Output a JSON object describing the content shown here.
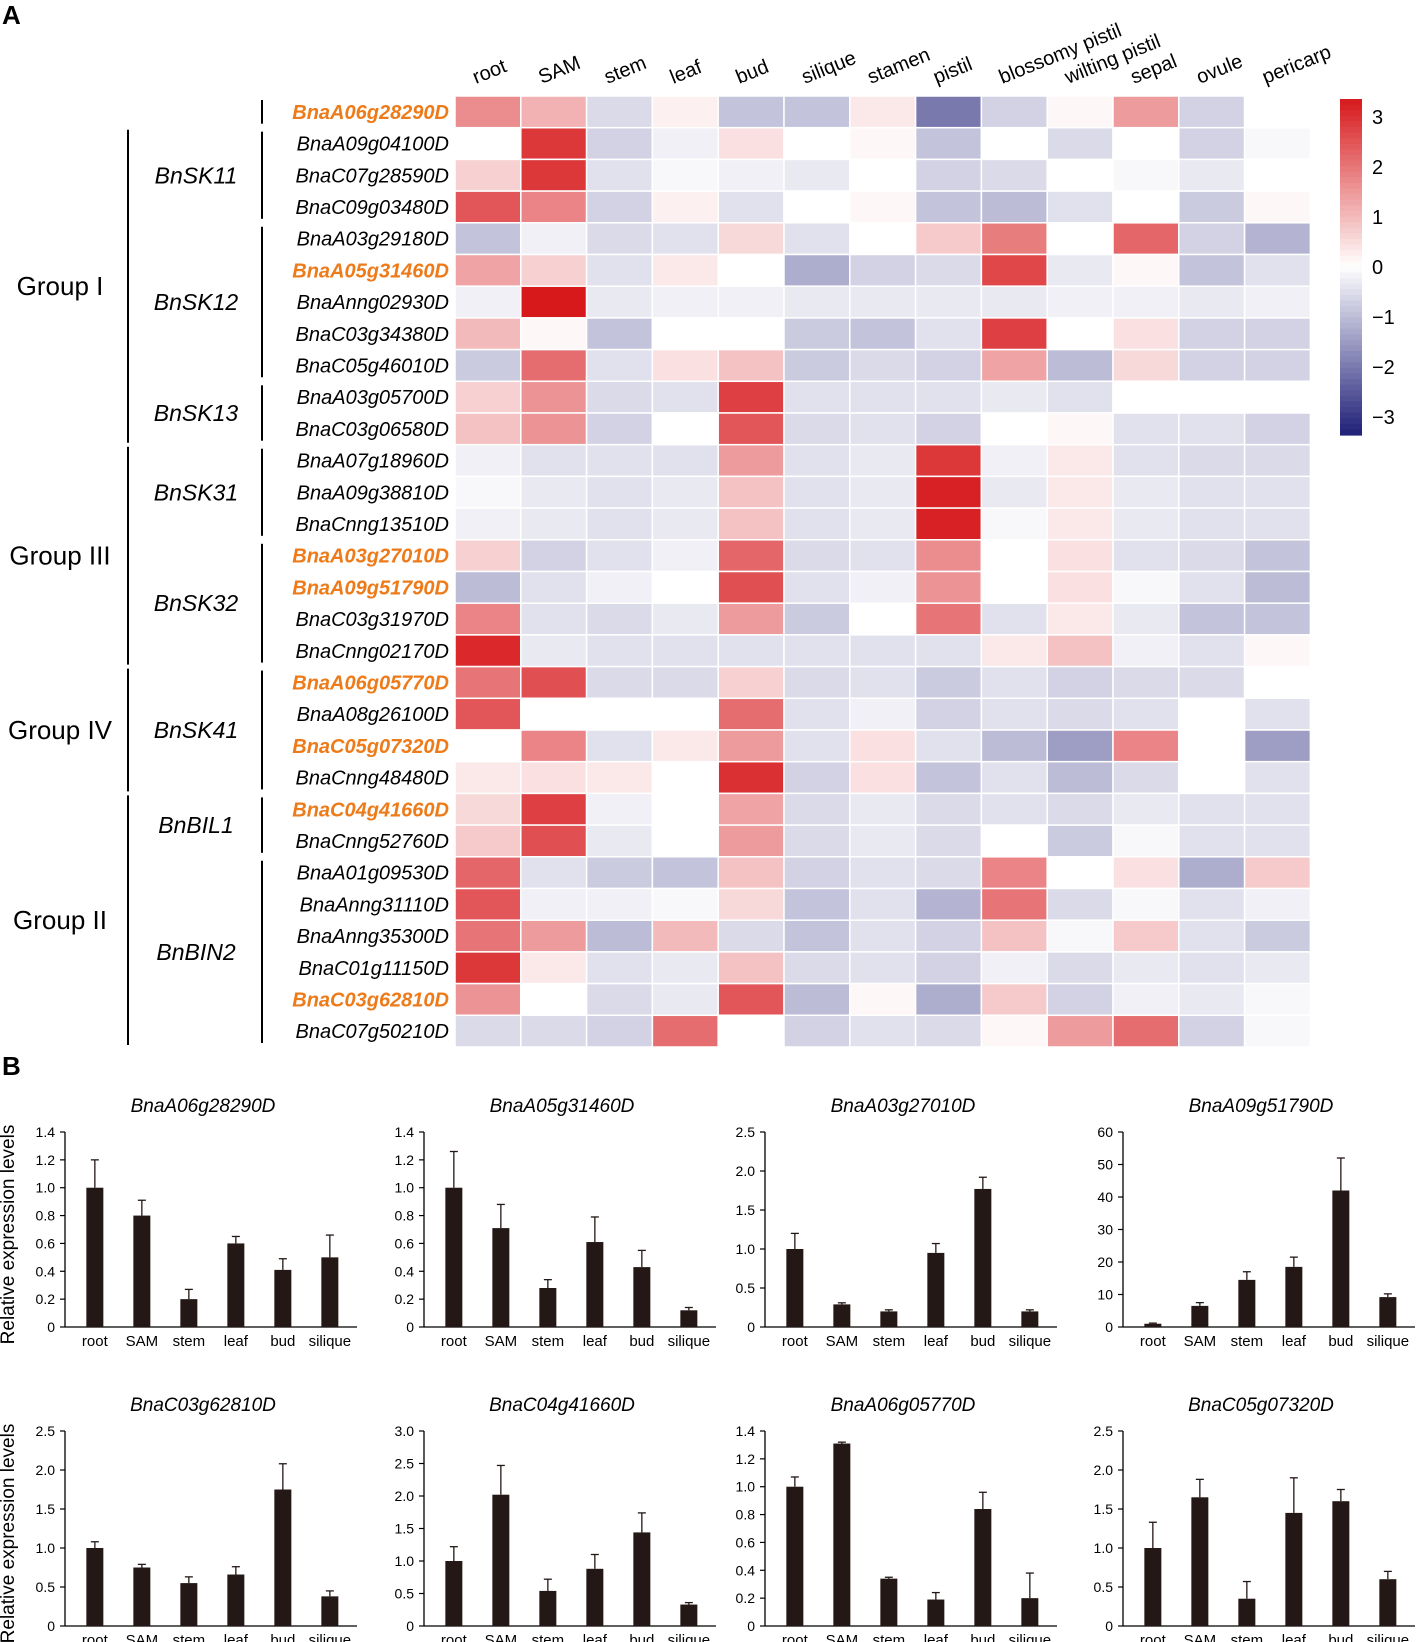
{
  "panels": {
    "a": "A",
    "b": "B"
  },
  "chart_data": [
    {
      "type": "heatmap",
      "panel": "A",
      "columns": [
        "root",
        "SAM",
        "stem",
        "leaf",
        "bud",
        "silique",
        "stamen",
        "pistil",
        "blossomy pistil",
        "wilting pistil",
        "sepal",
        "ovule",
        "pericarp"
      ],
      "rows": [
        {
          "gene": "BnaA06g28290D",
          "highlight": true,
          "values": [
            1.5,
            1.0,
            -0.5,
            0.2,
            -0.8,
            -0.8,
            0.3,
            -1.8,
            -0.6,
            0.1,
            1.3,
            -0.6,
            0.0
          ]
        },
        {
          "gene": "BnaA09g04100D",
          "highlight": false,
          "values": [
            0.0,
            2.6,
            -0.6,
            -0.2,
            0.4,
            0.0,
            0.1,
            -0.8,
            0.0,
            -0.5,
            0.0,
            -0.6,
            -0.1
          ]
        },
        {
          "gene": "BnaC07g28590D",
          "highlight": false,
          "values": [
            0.6,
            2.6,
            -0.4,
            -0.1,
            -0.2,
            -0.3,
            0.0,
            -0.6,
            -0.5,
            0.0,
            -0.1,
            -0.3,
            0.0
          ]
        },
        {
          "gene": "BnaC09g03480D",
          "highlight": false,
          "values": [
            2.2,
            1.6,
            -0.6,
            0.2,
            -0.4,
            0.0,
            0.1,
            -0.8,
            -0.9,
            -0.4,
            0.0,
            -0.7,
            0.1
          ]
        },
        {
          "gene": "BnaA03g29180D",
          "highlight": false,
          "values": [
            -0.8,
            -0.2,
            -0.5,
            -0.4,
            0.5,
            -0.4,
            0.0,
            0.7,
            1.7,
            0.0,
            2.0,
            -0.6,
            -1.0
          ]
        },
        {
          "gene": "BnaA05g31460D",
          "highlight": true,
          "values": [
            1.2,
            0.6,
            -0.4,
            0.3,
            0.0,
            -1.1,
            -0.6,
            -0.5,
            2.4,
            -0.3,
            0.1,
            -0.8,
            -0.4
          ]
        },
        {
          "gene": "BnaAnng02930D",
          "highlight": false,
          "values": [
            -0.2,
            3.0,
            -0.3,
            -0.2,
            -0.2,
            -0.3,
            -0.3,
            -0.3,
            -0.3,
            -0.2,
            -0.2,
            -0.3,
            -0.2
          ]
        },
        {
          "gene": "BnaC03g34380D",
          "highlight": false,
          "values": [
            0.9,
            0.1,
            -0.8,
            0.0,
            0.0,
            -0.7,
            -0.8,
            -0.4,
            2.5,
            0.0,
            0.4,
            -0.6,
            -0.6
          ]
        },
        {
          "gene": "BnaC05g46010D",
          "highlight": false,
          "values": [
            -0.7,
            1.9,
            -0.4,
            0.4,
            0.8,
            -0.7,
            -0.5,
            -0.6,
            1.2,
            -0.9,
            0.5,
            -0.6,
            -0.6
          ]
        },
        {
          "gene": "BnaA03g05700D",
          "highlight": false,
          "values": [
            0.6,
            1.4,
            -0.5,
            -0.4,
            2.5,
            -0.4,
            -0.4,
            -0.4,
            -0.3,
            -0.4,
            0.0,
            0.0,
            0.0
          ]
        },
        {
          "gene": "BnaC03g06580D",
          "highlight": false,
          "values": [
            0.8,
            1.4,
            -0.6,
            0.0,
            2.2,
            -0.5,
            -0.4,
            -0.6,
            0.0,
            0.1,
            -0.4,
            -0.4,
            -0.6
          ]
        },
        {
          "gene": "BnaA07g18960D",
          "highlight": false,
          "values": [
            -0.2,
            -0.4,
            -0.4,
            -0.4,
            1.3,
            -0.4,
            -0.3,
            2.6,
            -0.2,
            0.3,
            -0.4,
            -0.5,
            -0.5
          ]
        },
        {
          "gene": "BnaA09g38810D",
          "highlight": false,
          "values": [
            -0.1,
            -0.3,
            -0.4,
            -0.3,
            0.8,
            -0.4,
            -0.3,
            2.9,
            -0.3,
            0.3,
            -0.3,
            -0.4,
            -0.4
          ]
        },
        {
          "gene": "BnaCnng13510D",
          "highlight": false,
          "values": [
            -0.2,
            -0.3,
            -0.4,
            -0.3,
            0.8,
            -0.4,
            -0.3,
            2.9,
            -0.1,
            0.3,
            -0.3,
            -0.4,
            -0.4
          ]
        },
        {
          "gene": "BnaA03g27010D",
          "highlight": true,
          "values": [
            0.6,
            -0.6,
            -0.4,
            -0.2,
            2.0,
            -0.5,
            -0.4,
            1.5,
            0.0,
            0.4,
            -0.4,
            -0.5,
            -0.8
          ]
        },
        {
          "gene": "BnaA09g51790D",
          "highlight": true,
          "values": [
            -0.9,
            -0.4,
            -0.2,
            0.0,
            2.3,
            -0.4,
            -0.2,
            1.4,
            0.0,
            0.4,
            -0.1,
            -0.4,
            -0.9
          ]
        },
        {
          "gene": "BnaC03g31970D",
          "highlight": false,
          "values": [
            1.6,
            -0.4,
            -0.5,
            -0.3,
            1.3,
            -0.7,
            0.0,
            1.8,
            -0.4,
            0.3,
            -0.3,
            -0.8,
            -0.8
          ]
        },
        {
          "gene": "BnaCnng02170D",
          "highlight": false,
          "values": [
            2.8,
            -0.3,
            -0.4,
            -0.4,
            -0.4,
            -0.4,
            -0.4,
            -0.4,
            0.3,
            0.8,
            -0.2,
            -0.4,
            0.1
          ]
        },
        {
          "gene": "BnaA06g05770D",
          "highlight": true,
          "values": [
            1.8,
            2.3,
            -0.5,
            -0.5,
            0.6,
            -0.5,
            -0.4,
            -0.7,
            -0.4,
            -0.6,
            -0.5,
            -0.5,
            0.0
          ]
        },
        {
          "gene": "BnaA08g26100D",
          "highlight": false,
          "values": [
            2.2,
            0.0,
            0.0,
            0.0,
            1.9,
            -0.4,
            -0.2,
            -0.6,
            -0.4,
            -0.5,
            -0.4,
            0.0,
            -0.4
          ]
        },
        {
          "gene": "BnaC05g07320D",
          "highlight": true,
          "values": [
            0.0,
            1.6,
            -0.4,
            0.3,
            1.3,
            -0.4,
            0.4,
            -0.4,
            -0.9,
            -1.3,
            1.6,
            0.0,
            -1.3
          ]
        },
        {
          "gene": "BnaCnng48480D",
          "highlight": false,
          "values": [
            0.3,
            0.4,
            0.3,
            0.0,
            2.7,
            -0.6,
            0.4,
            -0.8,
            -0.4,
            -0.9,
            -0.5,
            0.0,
            -0.4
          ]
        },
        {
          "gene": "BnaC04g41660D",
          "highlight": true,
          "values": [
            0.5,
            2.5,
            -0.2,
            0.0,
            1.2,
            -0.5,
            -0.3,
            -0.5,
            -0.4,
            -0.5,
            -0.3,
            -0.4,
            -0.4
          ]
        },
        {
          "gene": "BnaCnng52760D",
          "highlight": false,
          "values": [
            0.7,
            2.3,
            -0.3,
            0.0,
            1.3,
            -0.5,
            -0.3,
            -0.5,
            0.0,
            -0.7,
            -0.1,
            -0.4,
            -0.4
          ]
        },
        {
          "gene": "BnaA01g09530D",
          "highlight": false,
          "values": [
            2.0,
            -0.4,
            -0.7,
            -0.8,
            0.8,
            -0.6,
            -0.4,
            -0.5,
            1.6,
            0.0,
            0.4,
            -1.1,
            0.7
          ]
        },
        {
          "gene": "BnaAnng31110D",
          "highlight": false,
          "values": [
            2.2,
            -0.2,
            -0.2,
            -0.1,
            0.5,
            -0.8,
            -0.4,
            -1.0,
            1.8,
            -0.5,
            -0.1,
            -0.4,
            -0.2
          ]
        },
        {
          "gene": "BnaAnng35300D",
          "highlight": false,
          "values": [
            1.8,
            1.3,
            -0.9,
            0.9,
            -0.5,
            -0.8,
            -0.4,
            -0.6,
            0.8,
            -0.1,
            0.7,
            -0.4,
            -0.7
          ]
        },
        {
          "gene": "BnaC01g11150D",
          "highlight": false,
          "values": [
            2.6,
            0.3,
            -0.4,
            -0.3,
            0.8,
            -0.5,
            -0.4,
            -0.6,
            -0.2,
            -0.5,
            -0.3,
            -0.4,
            -0.3
          ]
        },
        {
          "gene": "BnaC03g62810D",
          "highlight": true,
          "values": [
            1.4,
            0.0,
            -0.5,
            -0.3,
            2.2,
            -0.9,
            0.1,
            -1.1,
            0.7,
            -0.6,
            -0.2,
            -0.3,
            -0.1
          ]
        },
        {
          "gene": "BnaC07g50210D",
          "highlight": false,
          "values": [
            -0.5,
            -0.5,
            -0.6,
            1.9,
            0.0,
            -0.6,
            -0.4,
            -0.5,
            0.1,
            1.3,
            1.9,
            -0.6,
            -0.1
          ]
        }
      ],
      "color_scale": {
        "min": -3,
        "max": 3,
        "low_color": "#1f1f78",
        "mid_color": "#ffffff",
        "high_color": "#d7191c",
        "ticks": [
          "3",
          "2",
          "1",
          "0",
          "−1",
          "−2",
          "−3"
        ]
      },
      "subfamilies": [
        {
          "name": "BnSK11",
          "rows": [
            1,
            3
          ]
        },
        {
          "name": "BnSK12",
          "rows": [
            4,
            8
          ]
        },
        {
          "name": "BnSK13",
          "rows": [
            9,
            10
          ]
        },
        {
          "name": "BnSK31",
          "rows": [
            11,
            13
          ]
        },
        {
          "name": "BnSK32",
          "rows": [
            14,
            17
          ]
        },
        {
          "name": "BnSK41",
          "rows": [
            18,
            21
          ]
        },
        {
          "name": "BnBIL1",
          "rows": [
            22,
            23
          ]
        },
        {
          "name": "BnBIN2",
          "rows": [
            24,
            29
          ]
        }
      ],
      "groups": [
        {
          "name": "Group I",
          "rows": [
            1,
            10
          ]
        },
        {
          "name": "Group III",
          "rows": [
            11,
            17
          ]
        },
        {
          "name": "Group IV",
          "rows": [
            18,
            21
          ]
        },
        {
          "name": "Group II",
          "rows": [
            22,
            29
          ]
        }
      ]
    },
    {
      "type": "bar",
      "panel": "B",
      "ylabel": "Relative expression levels",
      "categories": [
        "root",
        "SAM",
        "stem",
        "leaf",
        "bud",
        "silique"
      ],
      "charts": [
        {
          "title": "BnaA06g28290D",
          "ylim": [
            0,
            1.4
          ],
          "yticks": [
            "0",
            "0.2",
            "0.4",
            "0.6",
            "0.8",
            "1.0",
            "1.2",
            "1.4"
          ],
          "values": [
            1.0,
            0.8,
            0.2,
            0.6,
            0.41,
            0.5
          ],
          "errors": [
            0.2,
            0.11,
            0.07,
            0.05,
            0.08,
            0.16
          ]
        },
        {
          "title": "BnaA05g31460D",
          "ylim": [
            0,
            1.4
          ],
          "yticks": [
            "0",
            "0.2",
            "0.4",
            "0.6",
            "0.8",
            "1.0",
            "1.2",
            "1.4"
          ],
          "values": [
            1.0,
            0.71,
            0.28,
            0.61,
            0.43,
            0.12
          ],
          "errors": [
            0.26,
            0.17,
            0.06,
            0.18,
            0.12,
            0.02
          ]
        },
        {
          "title": "BnaA03g27010D",
          "ylim": [
            0,
            2.5
          ],
          "yticks": [
            "0",
            "0.5",
            "1.0",
            "1.5",
            "2.0",
            "2.5"
          ],
          "values": [
            1.0,
            0.29,
            0.2,
            0.95,
            1.77,
            0.2
          ],
          "errors": [
            0.2,
            0.02,
            0.02,
            0.12,
            0.15,
            0.02
          ]
        },
        {
          "title": "BnaA09g51790D",
          "ylim": [
            0,
            60
          ],
          "yticks": [
            "0",
            "10",
            "20",
            "30",
            "40",
            "50",
            "60"
          ],
          "values": [
            1.0,
            6.5,
            14.5,
            18.5,
            42.0,
            9.2
          ],
          "errors": [
            0.2,
            1.0,
            2.5,
            3.0,
            10.0,
            1.0
          ]
        },
        {
          "title": "BnaC03g62810D",
          "ylim": [
            0,
            2.5
          ],
          "yticks": [
            "0",
            "0.5",
            "1.0",
            "1.5",
            "2.0",
            "2.5"
          ],
          "values": [
            1.0,
            0.75,
            0.55,
            0.66,
            1.75,
            0.38
          ],
          "errors": [
            0.08,
            0.04,
            0.08,
            0.1,
            0.33,
            0.07
          ]
        },
        {
          "title": "BnaC04g41660D",
          "ylim": [
            0,
            3.0
          ],
          "yticks": [
            "0",
            "0.5",
            "1.0",
            "1.5",
            "2.0",
            "2.5",
            "3.0"
          ],
          "values": [
            1.0,
            2.02,
            0.54,
            0.88,
            1.44,
            0.33
          ],
          "errors": [
            0.22,
            0.45,
            0.18,
            0.22,
            0.3,
            0.03
          ]
        },
        {
          "title": "BnaA06g05770D",
          "ylim": [
            0,
            1.4
          ],
          "yticks": [
            "0",
            "0.2",
            "0.4",
            "0.6",
            "0.8",
            "1.0",
            "1.2",
            "1.4"
          ],
          "values": [
            1.0,
            1.31,
            0.34,
            0.19,
            0.84,
            0.2
          ],
          "errors": [
            0.07,
            0.01,
            0.01,
            0.05,
            0.12,
            0.18
          ]
        },
        {
          "title": "BnaC05g07320D",
          "ylim": [
            0,
            2.5
          ],
          "yticks": [
            "0",
            "0.5",
            "1.0",
            "1.5",
            "2.0",
            "2.5"
          ],
          "values": [
            1.0,
            1.65,
            0.35,
            1.45,
            1.6,
            0.6
          ],
          "errors": [
            0.33,
            0.23,
            0.22,
            0.45,
            0.15,
            0.1
          ]
        }
      ]
    }
  ]
}
